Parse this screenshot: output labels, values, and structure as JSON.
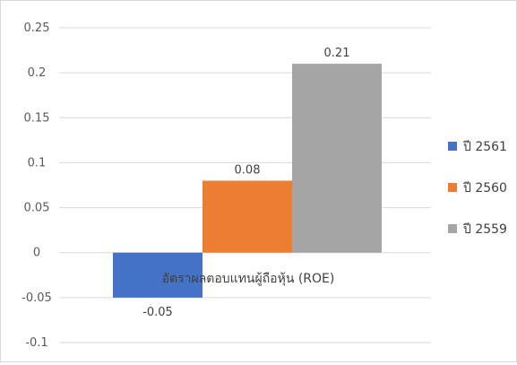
{
  "chart_data": {
    "type": "bar",
    "categories": [
      "อัตราผลตอบแทนผู้ถือหุ้น (ROE)"
    ],
    "series": [
      {
        "name": "ปี 2561",
        "values": [
          -0.05
        ],
        "color": "#4472C4"
      },
      {
        "name": "ปี 2560",
        "values": [
          0.08
        ],
        "color": "#ED7D31"
      },
      {
        "name": "ปี 2559",
        "values": [
          0.21
        ],
        "color": "#A5A5A5"
      }
    ],
    "yticks": [
      -0.1,
      -0.05,
      0,
      0.05,
      0.1,
      0.15,
      0.2,
      0.25
    ],
    "ytick_labels": [
      "-0.1",
      "-0.05",
      "0",
      "0.05",
      "0.1",
      "0.15",
      "0.2",
      "0.25"
    ],
    "data_labels": [
      "-0.05",
      "0.08",
      "0.21"
    ],
    "ylim": [
      -0.1,
      0.25
    ],
    "grid": true,
    "legend_position": "right"
  }
}
